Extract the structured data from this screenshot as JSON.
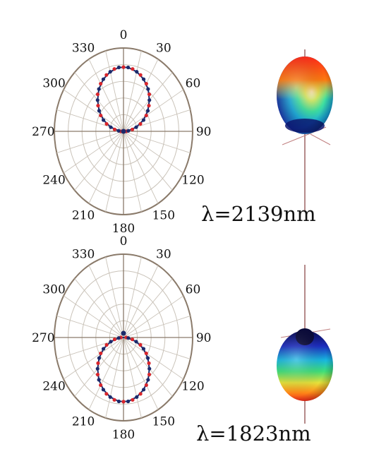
{
  "chart_data": [
    {
      "type": "polar",
      "angle_ticks": [
        "0",
        "30",
        "60",
        "90",
        "120",
        "150",
        "180",
        "210",
        "240",
        "270",
        "300",
        "330"
      ],
      "angle_tick_values": [
        0,
        30,
        60,
        90,
        120,
        150,
        180,
        210,
        240,
        270,
        300,
        330
      ],
      "r_range": [
        0,
        1
      ],
      "grid": true,
      "caption": "λ=2139nm",
      "lobe_direction_deg": 0,
      "series": [
        {
          "marker": "measured",
          "color": "#d9262c",
          "theta": [
            0,
            10,
            20,
            30,
            40,
            50,
            60,
            70,
            80,
            90,
            270,
            280,
            290,
            300,
            310,
            320,
            330,
            340,
            350
          ],
          "r": [
            0.77,
            0.76,
            0.72,
            0.66,
            0.58,
            0.48,
            0.38,
            0.26,
            0.13,
            0.04,
            0.04,
            0.13,
            0.26,
            0.38,
            0.48,
            0.58,
            0.66,
            0.72,
            0.76
          ]
        },
        {
          "marker": "simulated",
          "color": "#1b2a6b",
          "theta": [
            5,
            15,
            25,
            35,
            45,
            55,
            65,
            75,
            85,
            275,
            285,
            295,
            305,
            315,
            325,
            335,
            345,
            355
          ],
          "r": [
            0.77,
            0.74,
            0.69,
            0.62,
            0.53,
            0.43,
            0.32,
            0.19,
            0.07,
            0.07,
            0.19,
            0.32,
            0.43,
            0.53,
            0.62,
            0.69,
            0.74,
            0.77
          ]
        }
      ]
    },
    {
      "type": "polar",
      "angle_ticks": [
        "0",
        "30",
        "60",
        "90",
        "120",
        "150",
        "180",
        "210",
        "240",
        "270",
        "300",
        "330"
      ],
      "angle_tick_values": [
        0,
        30,
        60,
        90,
        120,
        150,
        180,
        210,
        240,
        270,
        300,
        330
      ],
      "r_range": [
        0,
        1
      ],
      "grid": true,
      "caption": "λ=1823nm",
      "lobe_direction_deg": 180,
      "series": [
        {
          "marker": "measured",
          "color": "#d9262c",
          "theta": [
            90,
            100,
            110,
            120,
            130,
            140,
            150,
            160,
            170,
            180,
            190,
            200,
            210,
            220,
            230,
            240,
            250,
            260,
            270
          ],
          "r": [
            0.04,
            0.13,
            0.26,
            0.38,
            0.48,
            0.58,
            0.66,
            0.72,
            0.76,
            0.77,
            0.76,
            0.72,
            0.66,
            0.58,
            0.48,
            0.38,
            0.26,
            0.13,
            0.04
          ]
        },
        {
          "marker": "simulated",
          "color": "#1b2a6b",
          "theta": [
            95,
            105,
            115,
            125,
            135,
            145,
            155,
            165,
            175,
            185,
            195,
            205,
            215,
            225,
            235,
            245,
            255,
            265
          ],
          "r": [
            0.07,
            0.19,
            0.32,
            0.43,
            0.53,
            0.62,
            0.69,
            0.74,
            0.77,
            0.77,
            0.74,
            0.69,
            0.62,
            0.53,
            0.43,
            0.32,
            0.19,
            0.07
          ]
        }
      ]
    }
  ],
  "colors": {
    "axis": "#8a7a6a",
    "grid": "#c9c2b8",
    "curve": "#1b2a6b",
    "measured": "#d9262c",
    "simulated": "#1b2a6b"
  }
}
